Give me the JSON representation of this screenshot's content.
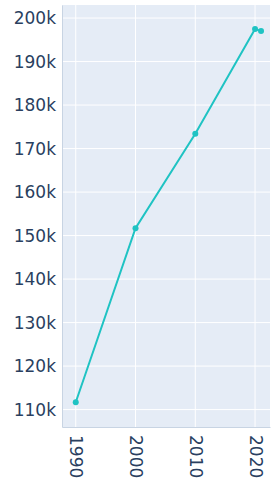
{
  "chart_data": {
    "type": "line",
    "x": [
      1990,
      2000,
      2010,
      2020,
      2021
    ],
    "values": [
      111700,
      151700,
      173400,
      197500,
      197000
    ],
    "color": "#1fc3c3",
    "marker": "circle",
    "line_style": "solid",
    "xlim": [
      1987.7,
      2022.5
    ],
    "xticks": [
      1990,
      2000,
      2010,
      2020
    ],
    "ylim": [
      106000,
      203000
    ],
    "yticks": [
      {
        "value": 110000,
        "label": "110k"
      },
      {
        "value": 120000,
        "label": "120k"
      },
      {
        "value": 130000,
        "label": "130k"
      },
      {
        "value": 140000,
        "label": "140k"
      },
      {
        "value": 150000,
        "label": "150k"
      },
      {
        "value": 160000,
        "label": "160k"
      },
      {
        "value": 170000,
        "label": "170k"
      },
      {
        "value": 180000,
        "label": "180k"
      },
      {
        "value": 190000,
        "label": "190k"
      },
      {
        "value": 200000,
        "label": "200k"
      }
    ],
    "grid": true
  }
}
